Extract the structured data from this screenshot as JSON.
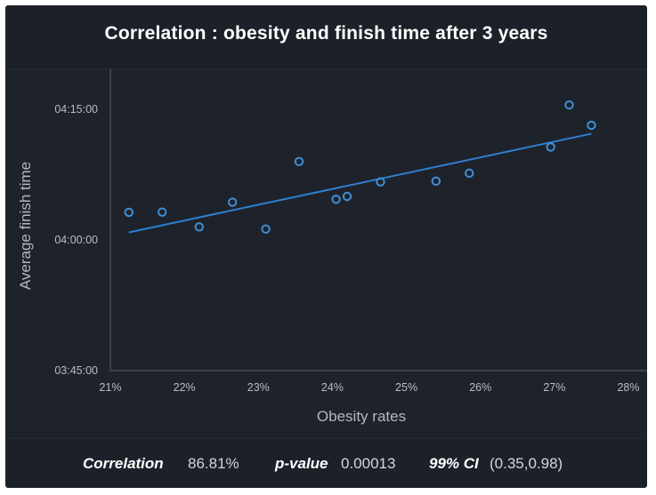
{
  "title": "Correlation : obesity and finish time after 3 years",
  "chart_data": {
    "type": "scatter",
    "title": "Correlation : obesity and finish time after 3 years",
    "xlabel": "Obesity rates",
    "ylabel": "Average finish time",
    "xlim": [
      21,
      28
    ],
    "ylim_seconds": [
      13500,
      15300
    ],
    "x_ticks": [
      "21%",
      "22%",
      "23%",
      "24%",
      "25%",
      "26%",
      "27%",
      "28%"
    ],
    "x_tick_values": [
      21,
      22,
      23,
      24,
      25,
      26,
      27,
      28
    ],
    "y_ticks": [
      "03:45:00",
      "04:00:00",
      "04:15:00"
    ],
    "y_tick_values_seconds": [
      13500,
      14400,
      15300
    ],
    "grid": false,
    "points": [
      {
        "x": 21.25,
        "y": "04:03:10"
      },
      {
        "x": 21.7,
        "y": "04:03:12"
      },
      {
        "x": 22.2,
        "y": "04:01:30"
      },
      {
        "x": 22.65,
        "y": "04:04:20"
      },
      {
        "x": 23.1,
        "y": "04:01:15"
      },
      {
        "x": 23.55,
        "y": "04:09:00"
      },
      {
        "x": 24.05,
        "y": "04:04:40"
      },
      {
        "x": 24.2,
        "y": "04:05:00"
      },
      {
        "x": 24.65,
        "y": "04:06:40"
      },
      {
        "x": 25.4,
        "y": "04:06:45"
      },
      {
        "x": 25.85,
        "y": "04:07:40"
      },
      {
        "x": 26.95,
        "y": "04:10:40"
      },
      {
        "x": 27.2,
        "y": "04:15:30"
      },
      {
        "x": 27.5,
        "y": "04:13:10"
      }
    ],
    "trendline": [
      {
        "x": 21.25,
        "y": "04:00:52"
      },
      {
        "x": 27.5,
        "y": "04:12:12"
      }
    ],
    "colors": {
      "points": "#3f8fd6",
      "trendline": "#2f7fd0",
      "axis": "#3a414b"
    }
  },
  "stats": {
    "correlation_label": "Correlation",
    "correlation_value": "86.81%",
    "pvalue_label": "p-value",
    "pvalue_value": "0.00013",
    "ci_label": "99% CI",
    "ci_value": "(0.35,0.98)"
  }
}
